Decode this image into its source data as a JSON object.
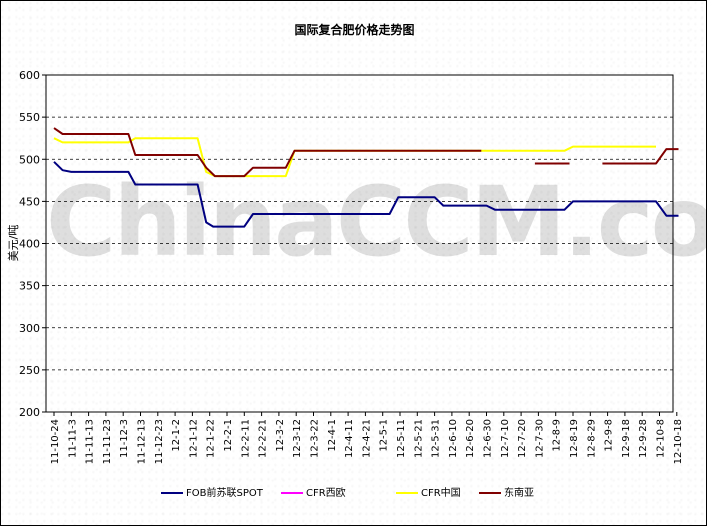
{
  "chart_data": {
    "type": "line",
    "title": "国际复合肥价格走势图",
    "ylabel": "美元/吨",
    "xlabel": "",
    "ylim": [
      200,
      600
    ],
    "yticks": [
      200,
      250,
      300,
      350,
      400,
      450,
      500,
      550,
      600
    ],
    "grid": "horizontal-dashed",
    "legend": "bottom",
    "watermark": "ChinaCCM.com",
    "categories": [
      "11-10-24",
      "11-11-3",
      "11-11-13",
      "11-11-23",
      "11-12-3",
      "11-12-13",
      "11-12-23",
      "12-1-2",
      "12-1-12",
      "12-1-22",
      "12-2-1",
      "12-2-11",
      "12-2-21",
      "12-3-2",
      "12-3-12",
      "12-3-22",
      "12-4-1",
      "12-4-11",
      "12-4-21",
      "12-5-1",
      "12-5-11",
      "12-5-21",
      "12-5-31",
      "12-6-10",
      "12-6-20",
      "12-6-30",
      "12-7-10",
      "12-7-20",
      "12-7-30",
      "12-8-9",
      "12-8-19",
      "12-8-29",
      "12-9-8",
      "12-9-18",
      "12-9-28",
      "12-10-8",
      "12-10-18"
    ],
    "series": [
      {
        "name": "FOB前苏联SPOT",
        "color": "#000080",
        "points": [
          [
            0,
            497
          ],
          [
            0.5,
            487
          ],
          [
            1,
            485
          ],
          [
            4.3,
            485
          ],
          [
            4.7,
            470
          ],
          [
            8.3,
            470
          ],
          [
            8.8,
            425
          ],
          [
            9.2,
            420
          ],
          [
            11.0,
            420
          ],
          [
            11.5,
            435
          ],
          [
            19.4,
            435
          ],
          [
            19.9,
            455
          ],
          [
            22.0,
            455
          ],
          [
            22.5,
            445
          ],
          [
            25.0,
            445
          ],
          [
            25.5,
            440
          ],
          [
            29.5,
            440
          ],
          [
            30.0,
            450
          ],
          [
            34.8,
            450
          ],
          [
            35.4,
            433
          ],
          [
            36.1,
            433
          ]
        ]
      },
      {
        "name": "CFR西欧",
        "color": "#ff00ff",
        "points": []
      },
      {
        "name": "CFR中国",
        "color": "#ffff00",
        "points": [
          [
            0,
            525
          ],
          [
            0.5,
            520
          ],
          [
            4.3,
            520
          ],
          [
            4.7,
            525
          ],
          [
            8.3,
            525
          ],
          [
            8.8,
            485
          ],
          [
            9.3,
            480
          ],
          [
            13.4,
            480
          ],
          [
            13.9,
            510
          ],
          [
            29.5,
            510
          ],
          [
            30.0,
            515
          ],
          [
            34.8,
            515
          ]
        ]
      },
      {
        "name": "东南亚",
        "color": "#800000",
        "segments": [
          [
            [
              0,
              537
            ],
            [
              0.5,
              530
            ],
            [
              4.3,
              530
            ],
            [
              4.7,
              505
            ],
            [
              8.3,
              505
            ],
            [
              8.8,
              490
            ],
            [
              9.3,
              480
            ],
            [
              11.0,
              480
            ],
            [
              11.5,
              490
            ],
            [
              13.4,
              490
            ],
            [
              13.9,
              510
            ],
            [
              24.7,
              510
            ]
          ],
          [
            [
              27.8,
              495
            ],
            [
              29.8,
              495
            ]
          ],
          [
            [
              31.7,
              495
            ],
            [
              34.8,
              495
            ],
            [
              35.4,
              512
            ],
            [
              36.1,
              512
            ]
          ]
        ]
      }
    ]
  }
}
